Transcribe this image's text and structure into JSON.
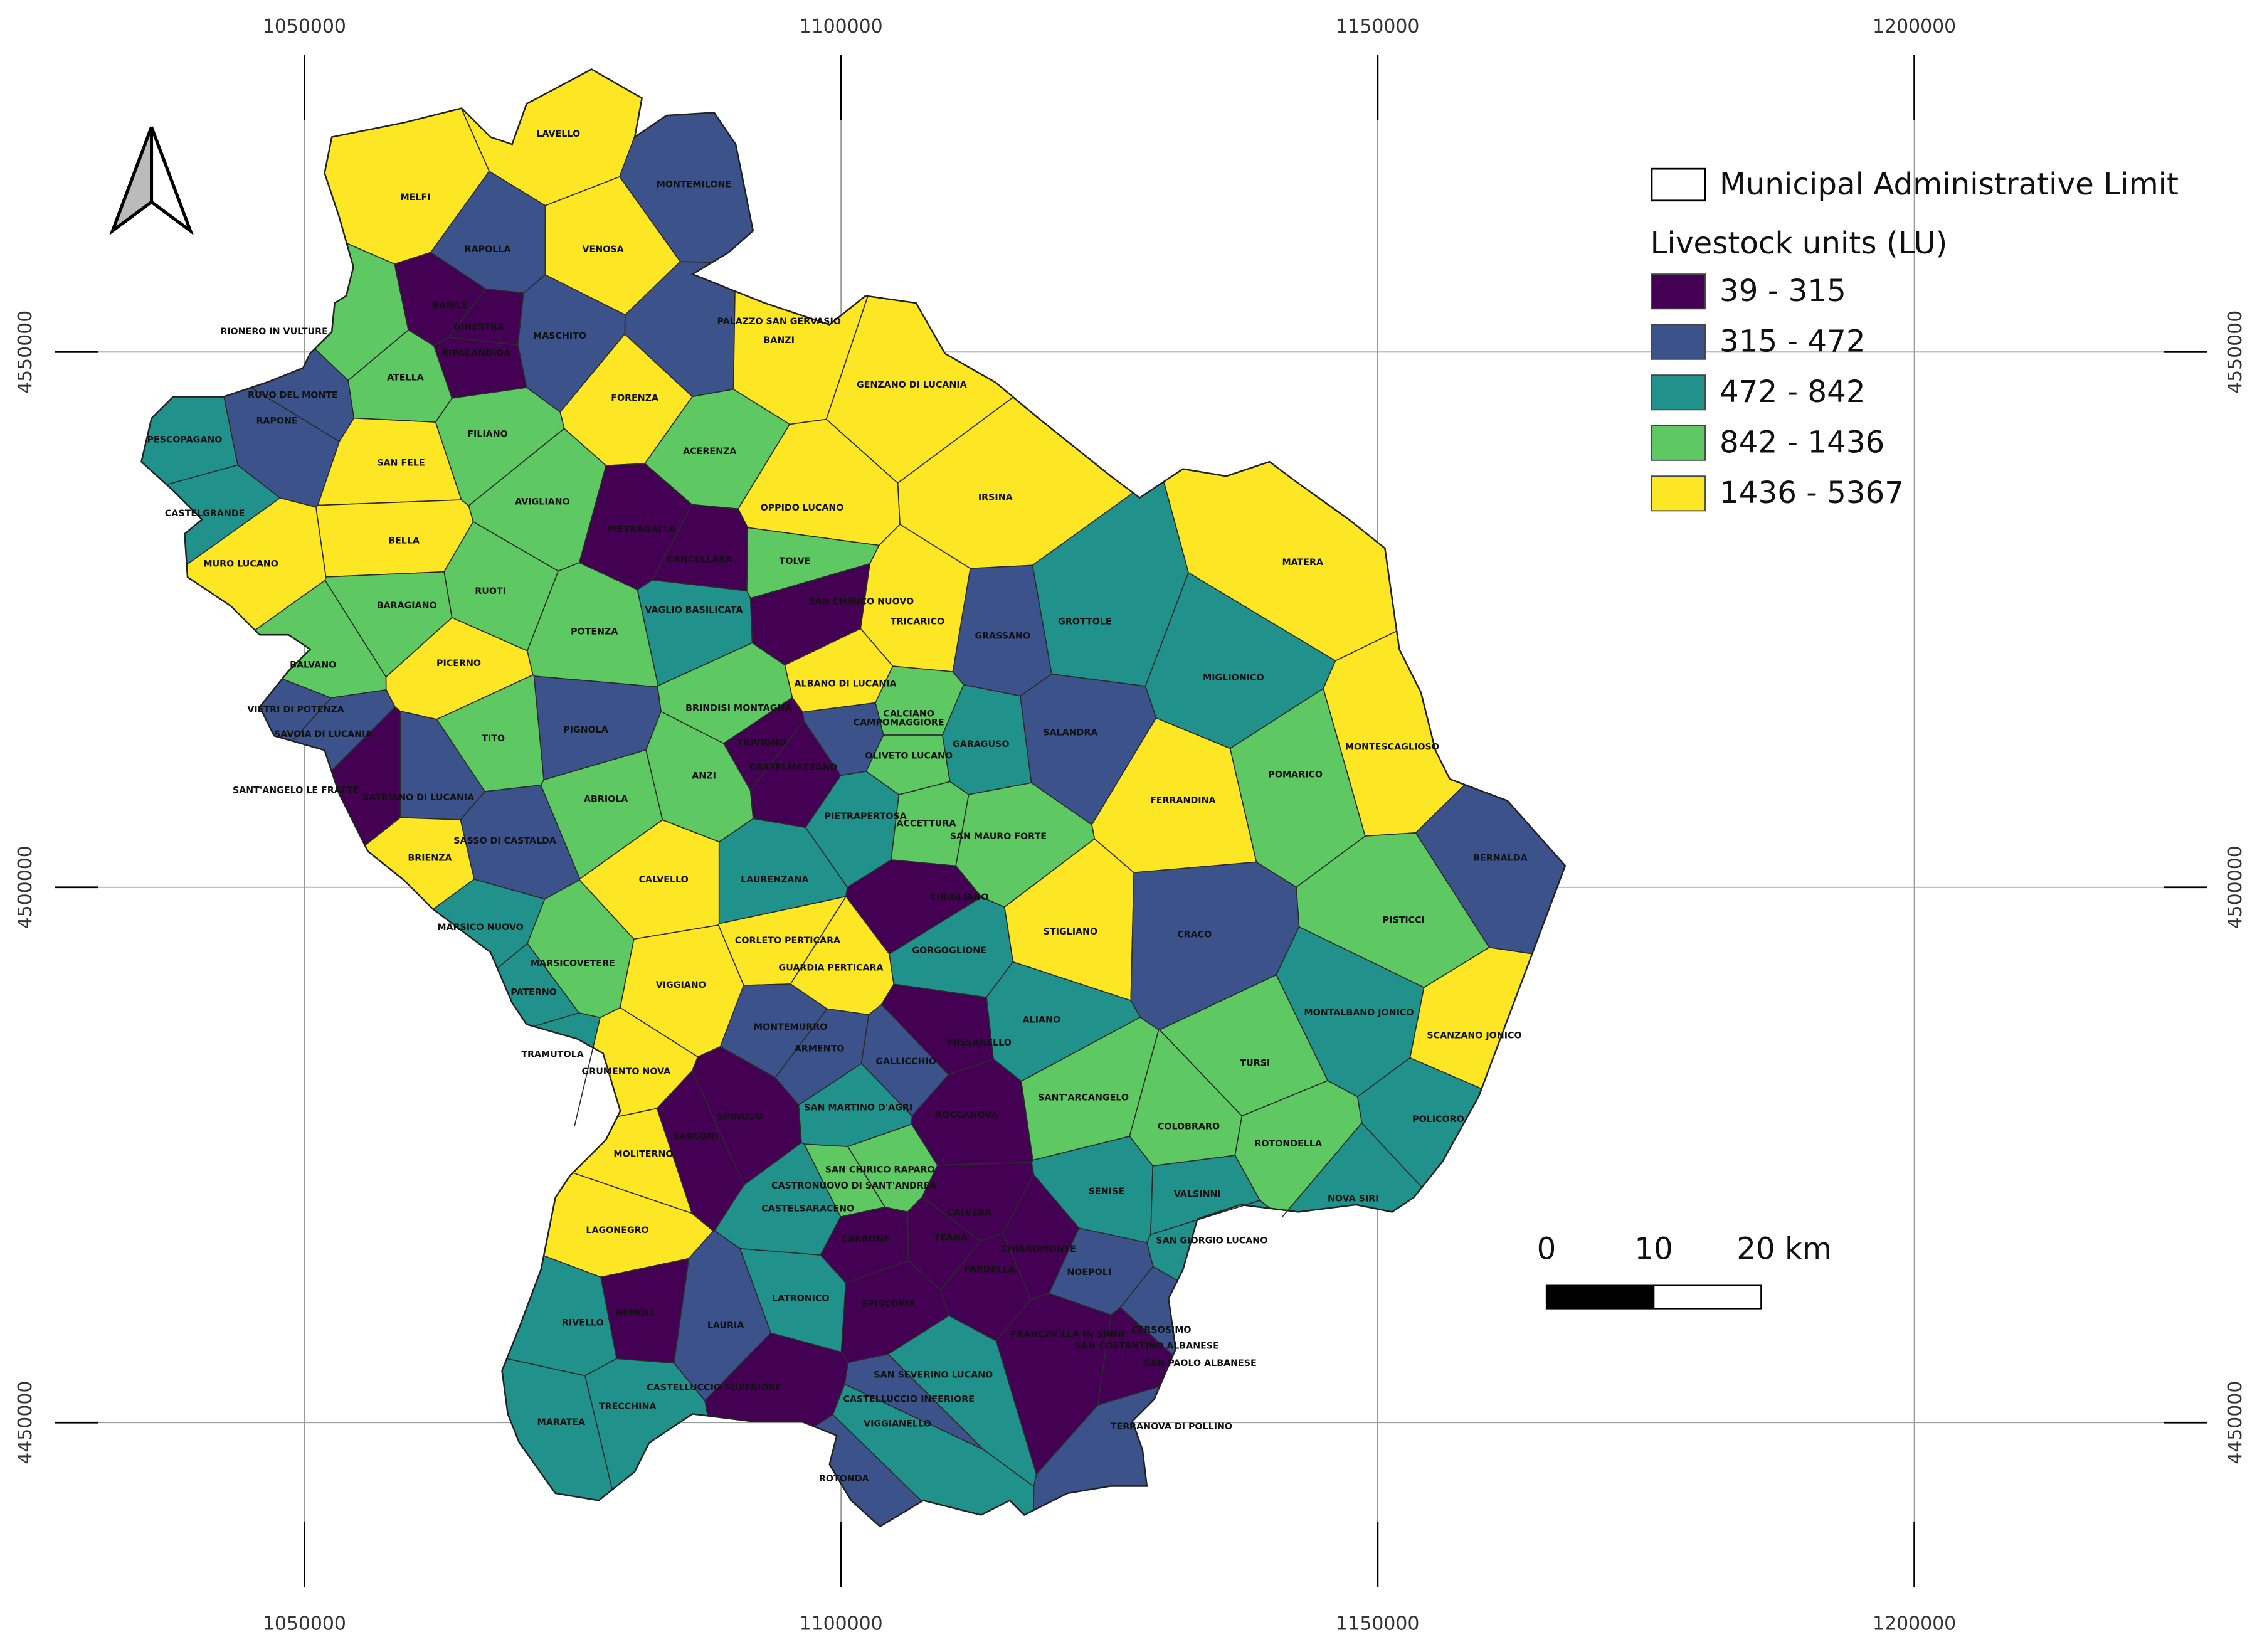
{
  "map": {
    "grid": {
      "xlim": [
        1026747,
        1227285
      ],
      "ylim": [
        4434636,
        4577763
      ],
      "xticks": [
        1050000,
        1100000,
        1150000,
        1200000
      ],
      "yticks": [
        4450000,
        4500000,
        4550000
      ]
    },
    "legend": {
      "boundary_label": "Municipal Administrative Limit",
      "title": "Livestock units (LU)",
      "classes": [
        {
          "label": "39 - 315",
          "color": "#440154"
        },
        {
          "label": "315 - 472",
          "color": "#3b528b"
        },
        {
          "label": "472 - 842",
          "color": "#21918c"
        },
        {
          "label": "842 - 1436",
          "color": "#5ec962"
        },
        {
          "label": "1436 - 5367",
          "color": "#fde725"
        }
      ]
    },
    "scale_bar": {
      "ticks": [
        0,
        10,
        {
          "value": 20,
          "label": "20 km"
        }
      ]
    },
    "municipalities": [
      {
        "name": "LAVELLO",
        "lu_class": "1436 - 5367"
      },
      {
        "name": "MONTEMILONE",
        "lu_class": "315 - 472"
      },
      {
        "name": "MELFI",
        "lu_class": "1436 - 5367"
      },
      {
        "name": "RAPOLLA",
        "lu_class": "315 - 472"
      },
      {
        "name": "VENOSA",
        "lu_class": "1436 - 5367"
      },
      {
        "name": "RIONERO IN VULTURE",
        "lu_class": "842 - 1436"
      },
      {
        "name": "BARILE",
        "lu_class": "39 - 315"
      },
      {
        "name": "GINESTRA",
        "lu_class": "39 - 315"
      },
      {
        "name": "RIPACANDIDA",
        "lu_class": "39 - 315"
      },
      {
        "name": "MASCHITO",
        "lu_class": "315 - 472"
      },
      {
        "name": "PALAZZO SAN GERVASIO",
        "lu_class": "315 - 472"
      },
      {
        "name": "BANZI",
        "lu_class": "1436 - 5367"
      },
      {
        "name": "GENZANO DI LUCANIA",
        "lu_class": "1436 - 5367"
      },
      {
        "name": "ATELLA",
        "lu_class": "842 - 1436"
      },
      {
        "name": "RUVO DEL MONTE",
        "lu_class": "315 - 472"
      },
      {
        "name": "RAPONE",
        "lu_class": "315 - 472"
      },
      {
        "name": "PESCOPAGANO",
        "lu_class": "472 - 842"
      },
      {
        "name": "FORENZA",
        "lu_class": "1436 - 5367"
      },
      {
        "name": "FILIANO",
        "lu_class": "842 - 1436"
      },
      {
        "name": "ACERENZA",
        "lu_class": "842 - 1436"
      },
      {
        "name": "SAN FELE",
        "lu_class": "1436 - 5367"
      },
      {
        "name": "IRSINA",
        "lu_class": "1436 - 5367"
      },
      {
        "name": "CASTELGRANDE",
        "lu_class": "472 - 842"
      },
      {
        "name": "AVIGLIANO",
        "lu_class": "842 - 1436"
      },
      {
        "name": "OPPIDO LUCANO",
        "lu_class": "1436 - 5367"
      },
      {
        "name": "MATERA",
        "lu_class": "1436 - 5367"
      },
      {
        "name": "PIETRAGALLA",
        "lu_class": "39 - 315"
      },
      {
        "name": "BELLA",
        "lu_class": "1436 - 5367"
      },
      {
        "name": "MURO LUCANO",
        "lu_class": "1436 - 5367"
      },
      {
        "name": "CANCELLARA",
        "lu_class": "39 - 315"
      },
      {
        "name": "TOLVE",
        "lu_class": "842 - 1436"
      },
      {
        "name": "SAN CHIRICO NUOVO",
        "lu_class": "39 - 315"
      },
      {
        "name": "RUOTI",
        "lu_class": "842 - 1436"
      },
      {
        "name": "BARAGIANO",
        "lu_class": "842 - 1436"
      },
      {
        "name": "VAGLIO BASILICATA",
        "lu_class": "472 - 842"
      },
      {
        "name": "TRICARICO",
        "lu_class": "1436 - 5367"
      },
      {
        "name": "GROTTOLE",
        "lu_class": "472 - 842"
      },
      {
        "name": "GRASSANO",
        "lu_class": "315 - 472"
      },
      {
        "name": "POTENZA",
        "lu_class": "842 - 1436"
      },
      {
        "name": "MIGLIONICO",
        "lu_class": "472 - 842"
      },
      {
        "name": "BALVANO",
        "lu_class": "842 - 1436"
      },
      {
        "name": "PICERNO",
        "lu_class": "1436 - 5367"
      },
      {
        "name": "ALBANO DI LUCANIA",
        "lu_class": "1436 - 5367"
      },
      {
        "name": "BRINDISI MONTAGNA",
        "lu_class": "842 - 1436"
      },
      {
        "name": "VIETRI DI POTENZA",
        "lu_class": "315 - 472"
      },
      {
        "name": "CALCIANO",
        "lu_class": "842 - 1436"
      },
      {
        "name": "CAMPOMAGGIORE",
        "lu_class": "315 - 472"
      },
      {
        "name": "SALANDRA",
        "lu_class": "315 - 472"
      },
      {
        "name": "SAVOIA DI LUCANIA",
        "lu_class": "315 - 472"
      },
      {
        "name": "TITO",
        "lu_class": "842 - 1436"
      },
      {
        "name": "PIGNOLA",
        "lu_class": "315 - 472"
      },
      {
        "name": "TRIVIGNO",
        "lu_class": "39 - 315"
      },
      {
        "name": "OLIVETO LUCANO",
        "lu_class": "842 - 1436"
      },
      {
        "name": "GARAGUSO",
        "lu_class": "472 - 842"
      },
      {
        "name": "MONTESCAGLIOSO",
        "lu_class": "1436 - 5367"
      },
      {
        "name": "POMARICO",
        "lu_class": "842 - 1436"
      },
      {
        "name": "ANZI",
        "lu_class": "842 - 1436"
      },
      {
        "name": "CASTELMEZZANO",
        "lu_class": "39 - 315"
      },
      {
        "name": "ABRIOLA",
        "lu_class": "842 - 1436"
      },
      {
        "name": "SANT'ANGELO LE FRATTE",
        "lu_class": "39 - 315"
      },
      {
        "name": "SATRIANO DI LUCANIA",
        "lu_class": "315 - 472"
      },
      {
        "name": "FERRANDINA",
        "lu_class": "1436 - 5367"
      },
      {
        "name": "PIETRAPERTOSA",
        "lu_class": "472 - 842"
      },
      {
        "name": "ACCETTURA",
        "lu_class": "842 - 1436"
      },
      {
        "name": "SASSO DI CASTALDA",
        "lu_class": "315 - 472"
      },
      {
        "name": "SAN MAURO FORTE",
        "lu_class": "842 - 1436"
      },
      {
        "name": "BRIENZA",
        "lu_class": "1436 - 5367"
      },
      {
        "name": "BERNALDA",
        "lu_class": "315 - 472"
      },
      {
        "name": "CALVELLO",
        "lu_class": "1436 - 5367"
      },
      {
        "name": "LAURENZANA",
        "lu_class": "472 - 842"
      },
      {
        "name": "PISTICCI",
        "lu_class": "842 - 1436"
      },
      {
        "name": "CIRIGLIANO",
        "lu_class": "39 - 315"
      },
      {
        "name": "STIGLIANO",
        "lu_class": "1436 - 5367"
      },
      {
        "name": "CORLETO PERTICARA",
        "lu_class": "1436 - 5367"
      },
      {
        "name": "CRACO",
        "lu_class": "315 - 472"
      },
      {
        "name": "MARSICO NUOVO",
        "lu_class": "472 - 842"
      },
      {
        "name": "GORGOGLIONE",
        "lu_class": "472 - 842"
      },
      {
        "name": "MARSICOVETERE",
        "lu_class": "842 - 1436"
      },
      {
        "name": "GUARDIA PERTICARA",
        "lu_class": "1436 - 5367"
      },
      {
        "name": "VIGGIANO",
        "lu_class": "1436 - 5367"
      },
      {
        "name": "PATERNO",
        "lu_class": "472 - 842"
      },
      {
        "name": "ALIANO",
        "lu_class": "472 - 842"
      },
      {
        "name": "MONTALBANO JONICO",
        "lu_class": "472 - 842"
      },
      {
        "name": "MONTEMURRO",
        "lu_class": "315 - 472"
      },
      {
        "name": "MISSANELLO",
        "lu_class": "39 - 315"
      },
      {
        "name": "SCANZANO JONICO",
        "lu_class": "1436 - 5367"
      },
      {
        "name": "ARMENTO",
        "lu_class": "315 - 472"
      },
      {
        "name": "TRAMUTOLA",
        "lu_class": "472 - 842"
      },
      {
        "name": "GALLICCHIO",
        "lu_class": "315 - 472"
      },
      {
        "name": "TURSI",
        "lu_class": "842 - 1436"
      },
      {
        "name": "GRUMENTO NOVA",
        "lu_class": "1436 - 5367"
      },
      {
        "name": "SAN MARTINO D'AGRI",
        "lu_class": "472 - 842"
      },
      {
        "name": "ROCCANOVA",
        "lu_class": "39 - 315"
      },
      {
        "name": "SPINOSO",
        "lu_class": "39 - 315"
      },
      {
        "name": "SANT'ARCANGELO",
        "lu_class": "842 - 1436"
      },
      {
        "name": "POLICORO",
        "lu_class": "472 - 842"
      },
      {
        "name": "COLOBRARO",
        "lu_class": "842 - 1436"
      },
      {
        "name": "SARCONI",
        "lu_class": "39 - 315"
      },
      {
        "name": "ROTONDELLA",
        "lu_class": "842 - 1436"
      },
      {
        "name": "MOLITERNO",
        "lu_class": "1436 - 5367"
      },
      {
        "name": "SAN CHIRICO RAPARO",
        "lu_class": "842 - 1436"
      },
      {
        "name": "CASTRONUOVO DI SANT'ANDREA",
        "lu_class": "842 - 1436"
      },
      {
        "name": "SENISE",
        "lu_class": "472 - 842"
      },
      {
        "name": "VALSINNI",
        "lu_class": "472 - 842"
      },
      {
        "name": "NOVA SIRI",
        "lu_class": "472 - 842"
      },
      {
        "name": "CASTELSARACENO",
        "lu_class": "472 - 842"
      },
      {
        "name": "CALVERA",
        "lu_class": "39 - 315"
      },
      {
        "name": "LAGONEGRO",
        "lu_class": "1436 - 5367"
      },
      {
        "name": "CARBONE",
        "lu_class": "39 - 315"
      },
      {
        "name": "TEANA",
        "lu_class": "39 - 315"
      },
      {
        "name": "SAN GIORGIO LUCANO",
        "lu_class": "472 - 842"
      },
      {
        "name": "CHIAROMONTE",
        "lu_class": "39 - 315"
      },
      {
        "name": "FARDELLA",
        "lu_class": "39 - 315"
      },
      {
        "name": "NOEPOLI",
        "lu_class": "315 - 472"
      },
      {
        "name": "LATRONICO",
        "lu_class": "472 - 842"
      },
      {
        "name": "EPISCOPIA",
        "lu_class": "39 - 315"
      },
      {
        "name": "RIVELLO",
        "lu_class": "472 - 842"
      },
      {
        "name": "NEMOLI",
        "lu_class": "39 - 315"
      },
      {
        "name": "LAURIA",
        "lu_class": "315 - 472"
      },
      {
        "name": "FRANCAVILLA IN SINNI",
        "lu_class": "39 - 315"
      },
      {
        "name": "CERSOSIMO",
        "lu_class": "315 - 472"
      },
      {
        "name": "SAN COSTANTINO ALBANESE",
        "lu_class": "39 - 315"
      },
      {
        "name": "SAN PAOLO ALBANESE",
        "lu_class": "39 - 315"
      },
      {
        "name": "CASTELLUCCIO SUPERIORE",
        "lu_class": "39 - 315"
      },
      {
        "name": "SAN SEVERINO LUCANO",
        "lu_class": "472 - 842"
      },
      {
        "name": "TRECCHINA",
        "lu_class": "472 - 842"
      },
      {
        "name": "CASTELLUCCIO INFERIORE",
        "lu_class": "315 - 472"
      },
      {
        "name": "TERRANOVA DI POLLINO",
        "lu_class": "315 - 472"
      },
      {
        "name": "MARATEA",
        "lu_class": "472 - 842"
      },
      {
        "name": "VIGGIANELLO",
        "lu_class": "472 - 842"
      },
      {
        "name": "ROTONDA",
        "lu_class": "315 - 472"
      }
    ]
  }
}
